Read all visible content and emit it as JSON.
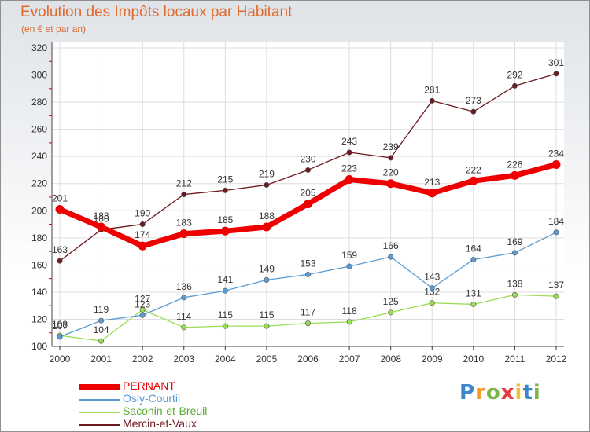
{
  "chart_data": {
    "type": "line",
    "title": "Evolution des Impôts locaux par Habitant",
    "subtitle": "(en € et par an)",
    "xlabel": "",
    "ylabel": "",
    "ylim": [
      100,
      320
    ],
    "ytick_step": 20,
    "grid": true,
    "legend_position": "bottom-left",
    "x": [
      "2000",
      "2001",
      "2002",
      "2003",
      "2004",
      "2005",
      "2006",
      "2007",
      "2008",
      "2009",
      "2010",
      "2011",
      "2012"
    ],
    "series": [
      {
        "name": "PERNANT",
        "color": "#ee0000",
        "values": [
          201,
          188,
          174,
          183,
          185,
          188,
          205,
          223,
          220,
          213,
          222,
          226,
          234
        ]
      },
      {
        "name": "Osly-Courtil",
        "color": "#5b9bd5",
        "values": [
          107,
          119,
          123,
          136,
          141,
          149,
          153,
          159,
          166,
          143,
          164,
          169,
          184
        ]
      },
      {
        "name": "Saconin-et-Breuil",
        "color": "#99dd55",
        "values": [
          108,
          104,
          127,
          114,
          115,
          115,
          117,
          118,
          125,
          132,
          131,
          138,
          137
        ]
      },
      {
        "name": "Mercin-et-Vaux",
        "color": "#6b1a1f",
        "values": [
          163,
          186,
          190,
          212,
          215,
          219,
          230,
          243,
          239,
          281,
          273,
          292,
          301
        ]
      }
    ]
  },
  "logo": {
    "letters": [
      "P",
      "r",
      "o",
      "x",
      "i",
      "t",
      "i"
    ],
    "colors": [
      "#3a86c8",
      "#f29a2e",
      "#7ab648",
      "#e23c3c",
      "#f2c12e",
      "#3a86c8",
      "#7ab648"
    ]
  }
}
